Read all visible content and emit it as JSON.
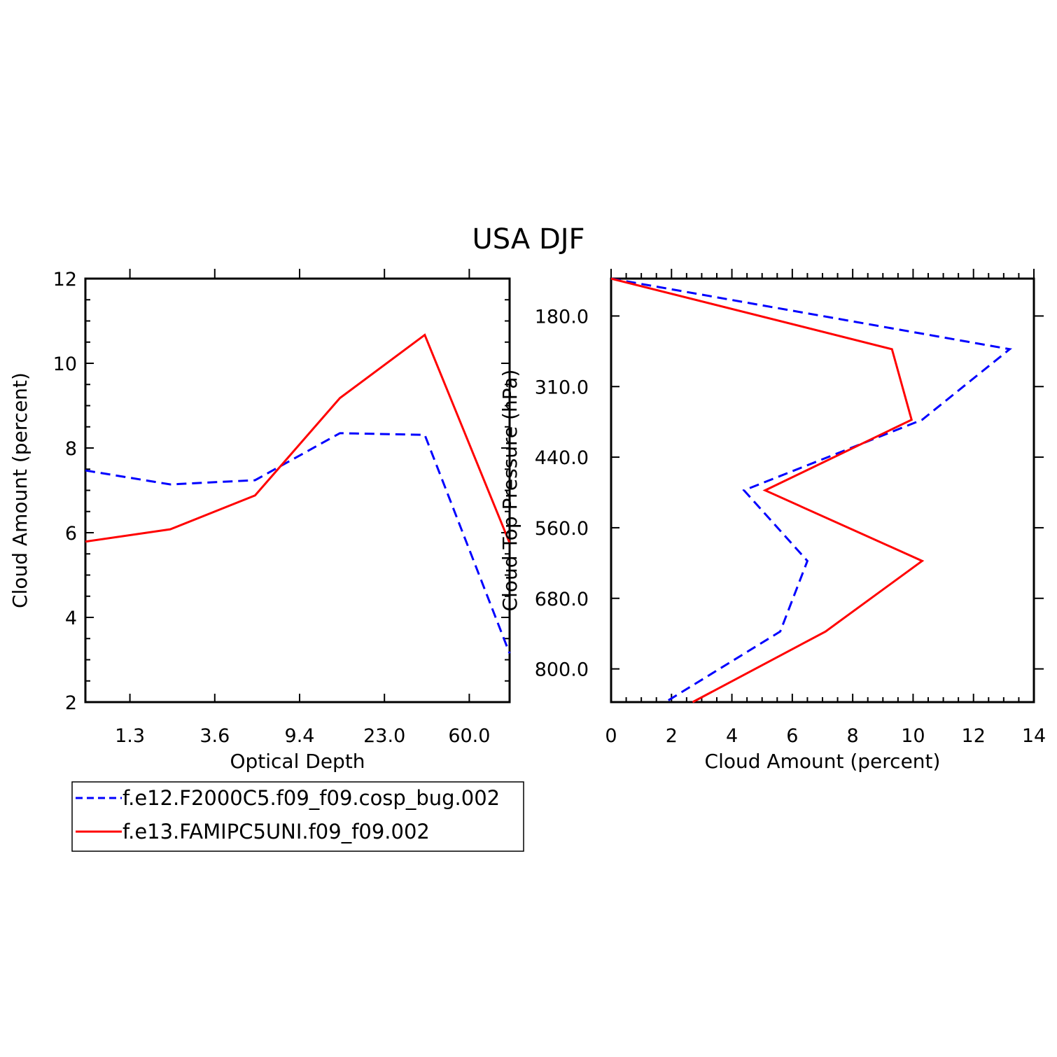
{
  "title": "USA DJF",
  "colors": {
    "series_a": "#0000ff",
    "series_b": "#ff0000"
  },
  "legend": [
    {
      "label": "f.e12.F2000C5.f09_f09.cosp_bug.002",
      "style": "dashed",
      "color": "#0000ff"
    },
    {
      "label": "f.e13.FAMIPC5UNI.f09_f09.002",
      "style": "solid",
      "color": "#ff0000"
    }
  ],
  "chart_data": [
    {
      "type": "line",
      "xlabel": "Optical Depth",
      "ylabel": "Cloud Amount (percent)",
      "ylim": [
        2,
        12
      ],
      "yticks": [
        "2",
        "4",
        "6",
        "8",
        "10",
        "12"
      ],
      "xtick_labels": [
        "1.3",
        "3.6",
        "9.4",
        "23.0",
        "60.0"
      ],
      "series": [
        {
          "name": "f.e12.F2000C5.f09_f09.cosp_bug.002",
          "style": "dashed",
          "color": "#0000ff",
          "values": [
            7.47,
            7.14,
            7.24,
            8.35,
            8.31,
            3.15
          ]
        },
        {
          "name": "f.e13.FAMIPC5UNI.f09_f09.002",
          "style": "solid",
          "color": "#ff0000",
          "values": [
            5.79,
            6.08,
            6.88,
            9.18,
            10.67,
            5.76
          ]
        }
      ]
    },
    {
      "type": "line",
      "xlabel": "Cloud Amount (percent)",
      "ylabel": "Cloud Top Pressure (hPa)",
      "xlim": [
        0,
        14
      ],
      "xticks": [
        "0",
        "2",
        "4",
        "6",
        "8",
        "10",
        "12",
        "14"
      ],
      "ytick_labels": [
        "180.0",
        "310.0",
        "440.0",
        "560.0",
        "680.0",
        "800.0"
      ],
      "series": [
        {
          "name": "f.e12.F2000C5.f09_f09.cosp_bug.002",
          "style": "dashed",
          "color": "#0000ff",
          "values": [
            0.0,
            13.2,
            10.3,
            4.4,
            6.5,
            5.6,
            1.8
          ]
        },
        {
          "name": "f.e13.FAMIPC5UNI.f09_f09.002",
          "style": "solid",
          "color": "#ff0000",
          "values": [
            0.0,
            9.3,
            9.95,
            5.1,
            10.3,
            7.1,
            2.7
          ]
        }
      ]
    }
  ]
}
